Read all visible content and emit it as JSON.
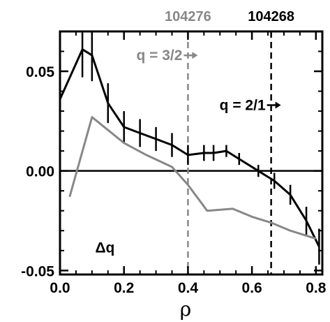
{
  "chart_data": {
    "type": "line",
    "title": "",
    "xlabel": "ρ",
    "ylabel": "",
    "xlim": [
      0.0,
      0.82
    ],
    "ylim": [
      -0.052,
      0.07
    ],
    "x_ticks": [
      "0.0",
      "0.2",
      "0.4",
      "0.6",
      "0.8"
    ],
    "y_ticks": [
      "0.05",
      "0.00",
      "-0.05"
    ],
    "grid": false,
    "legend": "none",
    "zero_line": 0.0,
    "series": [
      {
        "name": "104268",
        "color": "#000000",
        "x": [
          0.0,
          0.07,
          0.1,
          0.15,
          0.2,
          0.25,
          0.3,
          0.35,
          0.4,
          0.45,
          0.48,
          0.52,
          0.56,
          0.62,
          0.67,
          0.72,
          0.77,
          0.81
        ],
        "y": [
          0.036,
          0.061,
          0.058,
          0.034,
          0.022,
          0.019,
          0.016,
          0.013,
          0.008,
          0.009,
          0.009,
          0.01,
          0.006,
          0.0,
          -0.005,
          -0.012,
          -0.025,
          -0.038
        ],
        "err": [
          0.015,
          0.014,
          0.013,
          0.01,
          0.008,
          0.007,
          0.006,
          0.006,
          0.005,
          0.004,
          0.004,
          0.003,
          0.003,
          0.003,
          0.004,
          0.005,
          0.007,
          0.009
        ]
      },
      {
        "name": "104276",
        "color": "#888888",
        "x": [
          0.03,
          0.1,
          0.2,
          0.27,
          0.35,
          0.4,
          0.46,
          0.54,
          0.6,
          0.66,
          0.72,
          0.8
        ],
        "y": [
          -0.013,
          0.027,
          0.014,
          0.008,
          0.002,
          -0.007,
          -0.02,
          -0.019,
          -0.023,
          -0.026,
          -0.03,
          -0.034
        ]
      }
    ],
    "vlines": [
      {
        "shot": "104276",
        "x": 0.4,
        "color": "#888888",
        "label": "q = 3/2",
        "label_y": 0.058
      },
      {
        "shot": "104268",
        "x": 0.66,
        "color": "#000000",
        "label": "q = 2/1",
        "label_y": 0.033
      }
    ],
    "annotations": [
      {
        "text": "Δq",
        "x": 0.11,
        "y": -0.041
      }
    ]
  }
}
